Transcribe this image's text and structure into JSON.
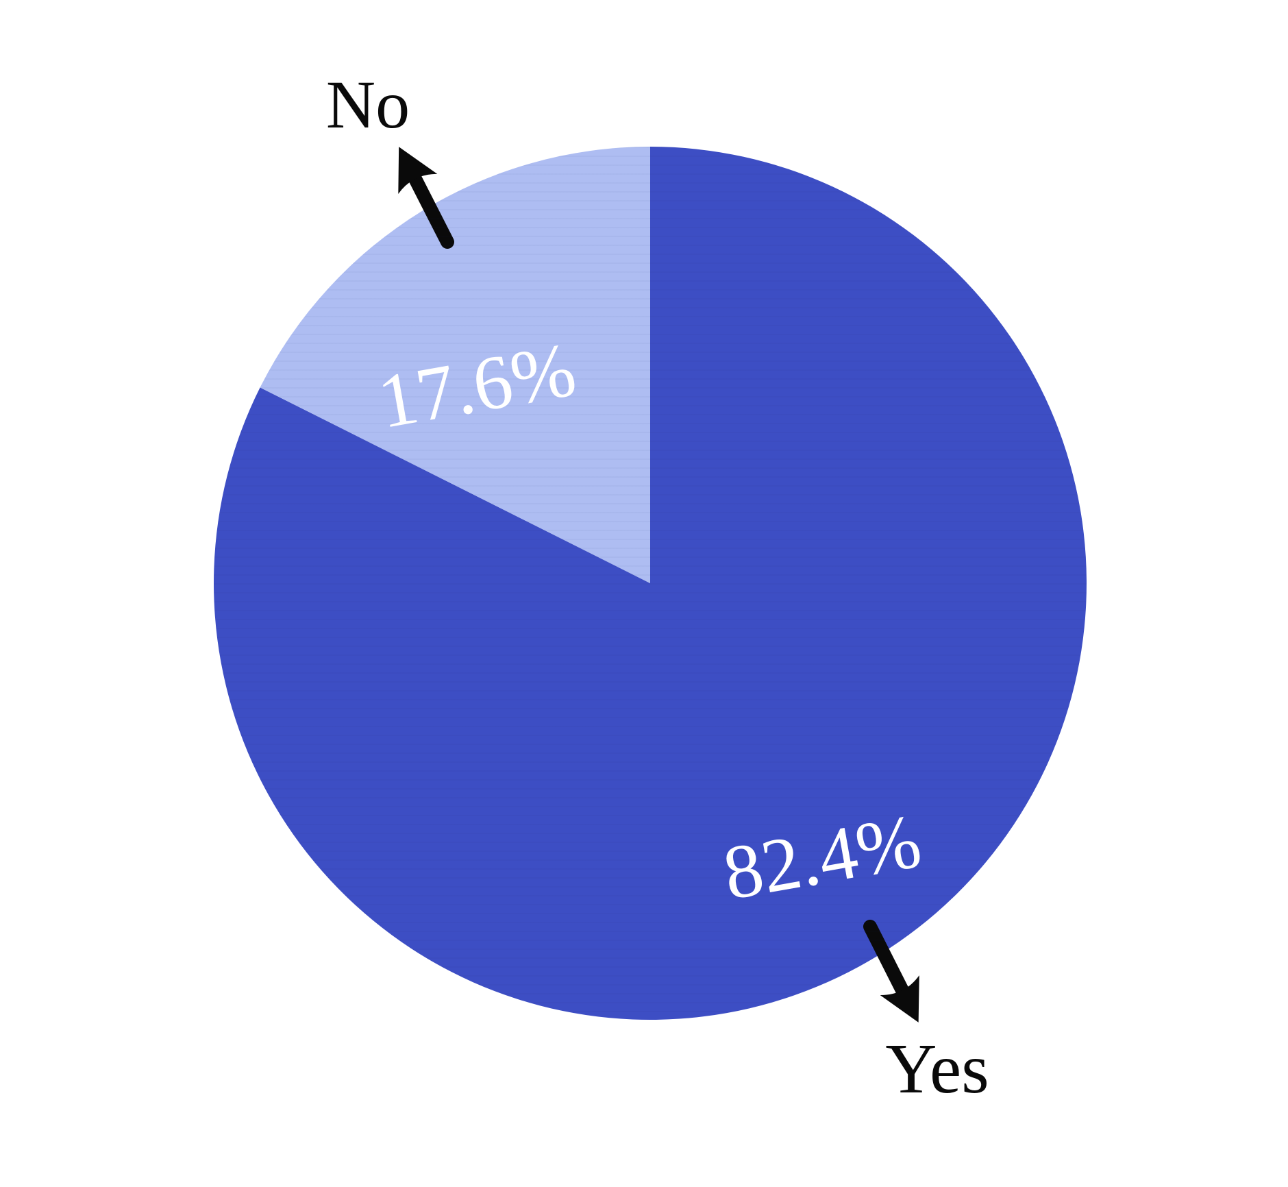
{
  "page": {
    "background_color": "#ffffff"
  },
  "chart_data": {
    "type": "pie",
    "title": "",
    "legend_position": "none",
    "start_angle_deg": 0,
    "direction": "clockwise",
    "annotation_style": "arrow-annotated external labels",
    "slices": [
      {
        "label": "Yes",
        "value": 82.4,
        "display": "82.4%",
        "color": "#3D4EC4",
        "value_label_color": "#ffffff",
        "category_label_color": "#0a0a0a"
      },
      {
        "label": "No",
        "value": 17.6,
        "display": "17.6%",
        "color": "#AEBDF2",
        "value_label_color": "#ffffff",
        "category_label_color": "#0a0a0a"
      }
    ]
  }
}
